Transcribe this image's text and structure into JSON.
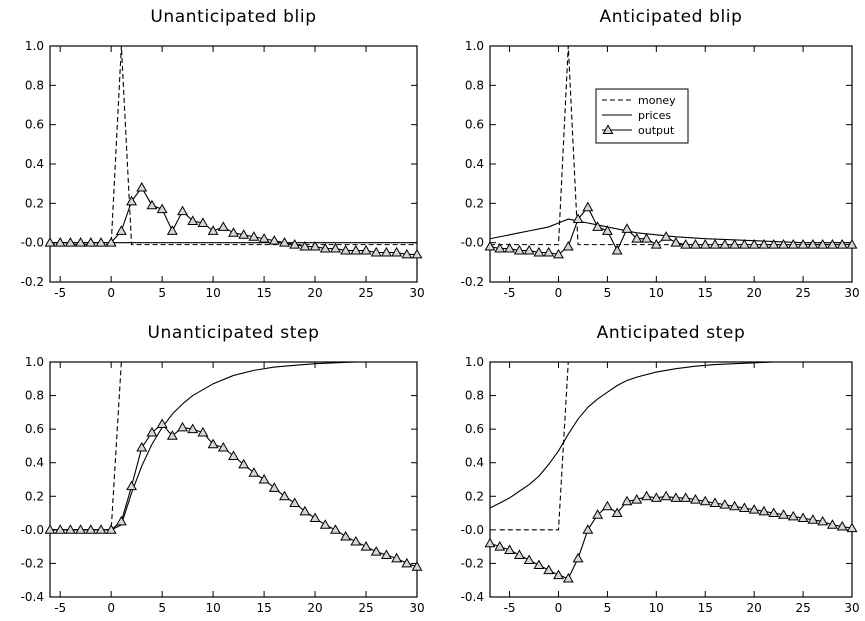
{
  "chart_data": [
    {
      "type": "line",
      "title": "Unanticipated blip",
      "xlabel": "",
      "ylabel": "",
      "xlim": [
        -6,
        30
      ],
      "ylim": [
        -0.2,
        1.0
      ],
      "xticks": [
        -5,
        0,
        5,
        10,
        15,
        20,
        25,
        30
      ],
      "yticks": [
        -0.2,
        0.0,
        0.2,
        0.4,
        0.6,
        0.8,
        1.0
      ],
      "xtick_labels": [
        "-5",
        "0",
        "5",
        "10",
        "15",
        "20",
        "25",
        "30"
      ],
      "ytick_labels": [
        "-0.2",
        "-0.0",
        "0.2",
        "0.4",
        "0.6",
        "0.8",
        "1.0"
      ],
      "series": [
        {
          "name": "money",
          "style": "dashed",
          "x": [
            -6,
            0,
            1,
            2,
            30
          ],
          "y": [
            -0.01,
            -0.01,
            1.0,
            -0.01,
            -0.01
          ]
        },
        {
          "name": "prices",
          "style": "solid",
          "x": [
            -6,
            30
          ],
          "y": [
            0.0,
            0.0
          ]
        },
        {
          "name": "output",
          "style": "solid-triangle",
          "x": [
            -6,
            -5,
            -4,
            -3,
            -2,
            -1,
            0,
            1,
            2,
            3,
            4,
            5,
            6,
            7,
            8,
            9,
            10,
            11,
            12,
            13,
            14,
            15,
            16,
            17,
            18,
            19,
            20,
            21,
            22,
            23,
            24,
            25,
            26,
            27,
            28,
            29,
            30
          ],
          "y": [
            0.0,
            0.0,
            0.0,
            0.0,
            0.0,
            0.0,
            0.0,
            0.06,
            0.21,
            0.28,
            0.19,
            0.17,
            0.06,
            0.16,
            0.11,
            0.1,
            0.06,
            0.08,
            0.05,
            0.04,
            0.03,
            0.02,
            0.01,
            0.0,
            -0.01,
            -0.02,
            -0.02,
            -0.03,
            -0.03,
            -0.04,
            -0.04,
            -0.04,
            -0.05,
            -0.05,
            -0.05,
            -0.06,
            -0.06
          ]
        }
      ]
    },
    {
      "type": "line",
      "title": "Anticipated blip",
      "xlabel": "",
      "ylabel": "",
      "xlim": [
        -7,
        30
      ],
      "ylim": [
        -0.2,
        1.0
      ],
      "xticks": [
        -5,
        0,
        5,
        10,
        15,
        20,
        25,
        30
      ],
      "yticks": [
        -0.2,
        0.0,
        0.2,
        0.4,
        0.6,
        0.8,
        1.0
      ],
      "xtick_labels": [
        "-5",
        "0",
        "5",
        "10",
        "15",
        "20",
        "25",
        "30"
      ],
      "ytick_labels": [
        "-0.2",
        "-0.0",
        "0.2",
        "0.4",
        "0.6",
        "0.8",
        "1.0"
      ],
      "legend": {
        "placement": "top-center",
        "entries": [
          "money",
          "prices",
          "output"
        ]
      },
      "series": [
        {
          "name": "money",
          "style": "dashed",
          "x": [
            -7,
            0,
            1,
            2,
            30
          ],
          "y": [
            -0.01,
            -0.01,
            1.0,
            -0.01,
            -0.01
          ]
        },
        {
          "name": "prices",
          "style": "solid",
          "x": [
            -7,
            -6,
            -5,
            -4,
            -3,
            -2,
            -1,
            0,
            1,
            2,
            3,
            4,
            5,
            6,
            8,
            10,
            12,
            15,
            20,
            25,
            30
          ],
          "y": [
            0.02,
            0.03,
            0.04,
            0.05,
            0.06,
            0.07,
            0.08,
            0.1,
            0.12,
            0.11,
            0.1,
            0.09,
            0.08,
            0.07,
            0.05,
            0.04,
            0.03,
            0.02,
            0.01,
            0.0,
            0.0
          ]
        },
        {
          "name": "output",
          "style": "solid-triangle",
          "x": [
            -7,
            -6,
            -5,
            -4,
            -3,
            -2,
            -1,
            0,
            1,
            2,
            3,
            4,
            5,
            6,
            7,
            8,
            9,
            10,
            11,
            12,
            13,
            14,
            15,
            16,
            17,
            18,
            19,
            20,
            21,
            22,
            23,
            24,
            25,
            26,
            27,
            28,
            29,
            30
          ],
          "y": [
            -0.02,
            -0.03,
            -0.03,
            -0.04,
            -0.04,
            -0.05,
            -0.05,
            -0.06,
            -0.02,
            0.12,
            0.18,
            0.08,
            0.06,
            -0.04,
            0.07,
            0.02,
            0.02,
            -0.01,
            0.03,
            0.0,
            -0.01,
            -0.01,
            -0.01,
            -0.01,
            -0.01,
            -0.01,
            -0.01,
            -0.01,
            -0.01,
            -0.01,
            -0.01,
            -0.01,
            -0.01,
            -0.01,
            -0.01,
            -0.01,
            -0.01,
            -0.01
          ]
        }
      ]
    },
    {
      "type": "line",
      "title": "Unanticipated step",
      "xlabel": "",
      "ylabel": "",
      "xlim": [
        -6,
        30
      ],
      "ylim": [
        -0.4,
        1.0
      ],
      "xticks": [
        -5,
        0,
        5,
        10,
        15,
        20,
        25,
        30
      ],
      "yticks": [
        -0.4,
        -0.2,
        0.0,
        0.2,
        0.4,
        0.6,
        0.8,
        1.0
      ],
      "xtick_labels": [
        "-5",
        "0",
        "5",
        "10",
        "15",
        "20",
        "25",
        "30"
      ],
      "ytick_labels": [
        "-0.4",
        "-0.2",
        "-0.0",
        "0.2",
        "0.4",
        "0.6",
        "0.8",
        "1.0"
      ],
      "series": [
        {
          "name": "money",
          "style": "dashed",
          "x": [
            -6,
            0,
            1,
            30
          ],
          "y": [
            0.0,
            0.0,
            1.0,
            1.0
          ]
        },
        {
          "name": "prices",
          "style": "solid",
          "x": [
            -6,
            0,
            1,
            2,
            3,
            4,
            5,
            6,
            7,
            8,
            10,
            12,
            14,
            16,
            18,
            20,
            22,
            24,
            26,
            28,
            30
          ],
          "y": [
            0.0,
            0.0,
            0.03,
            0.22,
            0.38,
            0.51,
            0.61,
            0.69,
            0.75,
            0.8,
            0.87,
            0.92,
            0.95,
            0.97,
            0.98,
            0.99,
            0.995,
            1.0,
            1.0,
            1.0,
            1.0
          ]
        },
        {
          "name": "output",
          "style": "solid-triangle",
          "x": [
            -6,
            -5,
            -4,
            -3,
            -2,
            -1,
            0,
            1,
            2,
            3,
            4,
            5,
            6,
            7,
            8,
            9,
            10,
            11,
            12,
            13,
            14,
            15,
            16,
            17,
            18,
            19,
            20,
            21,
            22,
            23,
            24,
            25,
            26,
            27,
            28,
            29,
            30
          ],
          "y": [
            0.0,
            0.0,
            0.0,
            0.0,
            0.0,
            0.0,
            0.0,
            0.05,
            0.26,
            0.49,
            0.58,
            0.63,
            0.56,
            0.61,
            0.6,
            0.58,
            0.51,
            0.49,
            0.44,
            0.39,
            0.34,
            0.3,
            0.25,
            0.2,
            0.16,
            0.11,
            0.07,
            0.03,
            0.0,
            -0.04,
            -0.07,
            -0.1,
            -0.13,
            -0.15,
            -0.17,
            -0.2,
            -0.22
          ]
        }
      ]
    },
    {
      "type": "line",
      "title": "Anticipated step",
      "xlabel": "",
      "ylabel": "",
      "xlim": [
        -7,
        30
      ],
      "ylim": [
        -0.4,
        1.0
      ],
      "xticks": [
        -5,
        0,
        5,
        10,
        15,
        20,
        25,
        30
      ],
      "yticks": [
        -0.4,
        -0.2,
        0.0,
        0.2,
        0.4,
        0.6,
        0.8,
        1.0
      ],
      "xtick_labels": [
        "-5",
        "0",
        "5",
        "10",
        "15",
        "20",
        "25",
        "30"
      ],
      "ytick_labels": [
        "-0.4",
        "-0.2",
        "-0.0",
        "0.2",
        "0.4",
        "0.6",
        "0.8",
        "1.0"
      ],
      "series": [
        {
          "name": "money",
          "style": "dashed",
          "x": [
            -6,
            0,
            1,
            30
          ],
          "y": [
            0.0,
            0.0,
            1.0,
            1.0
          ]
        },
        {
          "name": "prices",
          "style": "solid",
          "x": [
            -7,
            -6,
            -5,
            -4,
            -3,
            -2,
            -1,
            0,
            1,
            2,
            3,
            4,
            5,
            6,
            7,
            8,
            10,
            12,
            14,
            16,
            18,
            20,
            22,
            25,
            28,
            30
          ],
          "y": [
            0.13,
            0.16,
            0.19,
            0.23,
            0.27,
            0.32,
            0.39,
            0.47,
            0.57,
            0.66,
            0.73,
            0.78,
            0.82,
            0.86,
            0.89,
            0.91,
            0.94,
            0.96,
            0.975,
            0.985,
            0.99,
            0.995,
            1.0,
            1.0,
            1.0,
            1.0
          ]
        },
        {
          "name": "output",
          "style": "solid-triangle",
          "x": [
            -7,
            -6,
            -5,
            -4,
            -3,
            -2,
            -1,
            0,
            1,
            2,
            3,
            4,
            5,
            6,
            7,
            8,
            9,
            10,
            11,
            12,
            13,
            14,
            15,
            16,
            17,
            18,
            19,
            20,
            21,
            22,
            23,
            24,
            25,
            26,
            27,
            28,
            29,
            30
          ],
          "y": [
            -0.08,
            -0.1,
            -0.12,
            -0.15,
            -0.18,
            -0.21,
            -0.24,
            -0.27,
            -0.29,
            -0.17,
            0.0,
            0.09,
            0.14,
            0.1,
            0.17,
            0.18,
            0.2,
            0.19,
            0.2,
            0.19,
            0.19,
            0.18,
            0.17,
            0.16,
            0.15,
            0.14,
            0.13,
            0.12,
            0.11,
            0.1,
            0.09,
            0.08,
            0.07,
            0.06,
            0.05,
            0.03,
            0.02,
            0.01
          ]
        }
      ]
    }
  ]
}
